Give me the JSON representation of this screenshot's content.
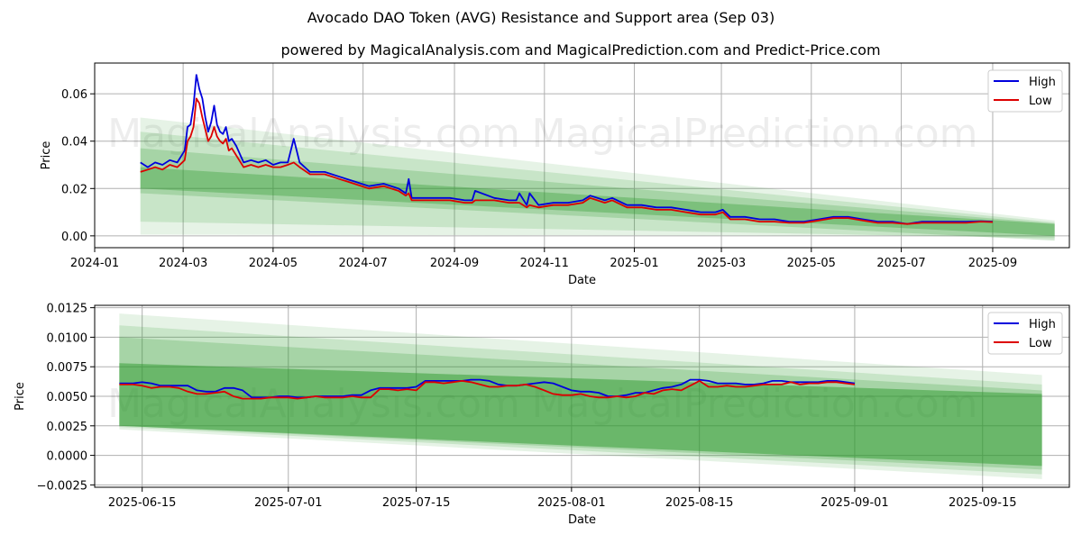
{
  "title": "Avocado DAO Token (AVG) Resistance and Support area (Sep 03)",
  "subtitle": "powered by MagicalAnalysis.com and MagicalPrediction.com and Predict-Price.com",
  "watermarks": [
    "MagicalAnalysis.com",
    "MagicalPrediction.com"
  ],
  "legend": {
    "high": "High",
    "low": "Low"
  },
  "colors": {
    "high": "#0000dd",
    "low": "#dd0000",
    "band": "#2e9a2e",
    "band_light": "#6ab96a"
  },
  "chart_data": [
    {
      "type": "line",
      "id": "top",
      "xlabel": "Date",
      "ylabel": "Price",
      "x_ticks": [
        {
          "label": "2024-01",
          "day": -31
        },
        {
          "label": "2024-03",
          "day": 29
        },
        {
          "label": "2024-05",
          "day": 90
        },
        {
          "label": "2024-07",
          "day": 151
        },
        {
          "label": "2024-09",
          "day": 213
        },
        {
          "label": "2024-11",
          "day": 274
        },
        {
          "label": "2025-01",
          "day": 335
        },
        {
          "label": "2025-03",
          "day": 394
        },
        {
          "label": "2025-05",
          "day": 455
        },
        {
          "label": "2025-07",
          "day": 516
        },
        {
          "label": "2025-09",
          "day": 578
        }
      ],
      "y_ticks": [
        0.0,
        0.02,
        0.04,
        0.06
      ],
      "y_tick_labels": [
        "0.00",
        "0.02",
        "0.04",
        "0.06"
      ],
      "xlim": [
        -31,
        630
      ],
      "ylim": [
        -0.005,
        0.073
      ],
      "bands": [
        {
          "x": [
            0,
            620
          ],
          "upper": [
            0.05,
            0.0065
          ],
          "lower": [
            0.0005,
            0.0
          ],
          "opacity": 0.12
        },
        {
          "x": [
            0,
            620
          ],
          "upper": [
            0.044,
            0.0057
          ],
          "lower": [
            0.006,
            -0.001
          ],
          "opacity": 0.16
        },
        {
          "x": [
            0,
            620
          ],
          "upper": [
            0.037,
            0.0052
          ],
          "lower": [
            0.018,
            -0.002
          ],
          "opacity": 0.22
        },
        {
          "x": [
            0,
            620
          ],
          "upper": [
            0.029,
            0.005
          ],
          "lower": [
            0.02,
            0.0
          ],
          "opacity": 0.35
        }
      ],
      "series": [
        {
          "name": "High",
          "x": [
            0,
            5,
            10,
            15,
            20,
            25,
            30,
            32,
            34,
            36,
            38,
            40,
            42,
            44,
            46,
            48,
            50,
            52,
            54,
            56,
            58,
            60,
            62,
            65,
            70,
            75,
            80,
            85,
            90,
            95,
            100,
            104,
            108,
            115,
            125,
            135,
            145,
            155,
            165,
            175,
            180,
            182,
            184,
            195,
            210,
            220,
            225,
            227,
            240,
            250,
            255,
            257,
            262,
            264,
            270,
            280,
            290,
            300,
            305,
            315,
            320,
            330,
            340,
            350,
            360,
            370,
            380,
            390,
            395,
            400,
            410,
            420,
            430,
            440,
            450,
            460,
            470,
            480,
            490,
            500,
            510,
            520,
            530,
            540,
            550,
            560,
            570,
            578
          ],
          "values": [
            0.031,
            0.029,
            0.031,
            0.03,
            0.032,
            0.031,
            0.036,
            0.046,
            0.047,
            0.055,
            0.068,
            0.062,
            0.058,
            0.05,
            0.044,
            0.048,
            0.055,
            0.047,
            0.044,
            0.043,
            0.046,
            0.04,
            0.041,
            0.038,
            0.031,
            0.032,
            0.031,
            0.032,
            0.03,
            0.031,
            0.031,
            0.041,
            0.031,
            0.027,
            0.027,
            0.025,
            0.023,
            0.021,
            0.022,
            0.02,
            0.018,
            0.024,
            0.016,
            0.016,
            0.016,
            0.015,
            0.015,
            0.019,
            0.016,
            0.015,
            0.015,
            0.018,
            0.013,
            0.018,
            0.013,
            0.014,
            0.014,
            0.015,
            0.017,
            0.015,
            0.016,
            0.013,
            0.013,
            0.012,
            0.012,
            0.011,
            0.01,
            0.01,
            0.011,
            0.008,
            0.008,
            0.007,
            0.007,
            0.006,
            0.006,
            0.007,
            0.008,
            0.008,
            0.007,
            0.006,
            0.006,
            0.005,
            0.006,
            0.006,
            0.006,
            0.006,
            0.0062,
            0.006
          ]
        },
        {
          "name": "Low",
          "x": [
            0,
            5,
            10,
            15,
            20,
            25,
            30,
            32,
            34,
            36,
            38,
            40,
            42,
            44,
            46,
            48,
            50,
            52,
            54,
            56,
            58,
            60,
            62,
            65,
            70,
            75,
            80,
            85,
            90,
            95,
            100,
            104,
            108,
            115,
            125,
            135,
            145,
            155,
            165,
            175,
            180,
            182,
            184,
            195,
            210,
            220,
            225,
            227,
            240,
            250,
            255,
            257,
            262,
            264,
            270,
            280,
            290,
            300,
            305,
            315,
            320,
            330,
            340,
            350,
            360,
            370,
            380,
            390,
            395,
            400,
            410,
            420,
            430,
            440,
            450,
            460,
            470,
            480,
            490,
            500,
            510,
            520,
            530,
            540,
            550,
            560,
            570,
            578
          ],
          "values": [
            0.027,
            0.028,
            0.029,
            0.028,
            0.03,
            0.029,
            0.032,
            0.04,
            0.042,
            0.046,
            0.058,
            0.056,
            0.05,
            0.045,
            0.04,
            0.042,
            0.046,
            0.042,
            0.04,
            0.039,
            0.041,
            0.036,
            0.037,
            0.034,
            0.029,
            0.03,
            0.029,
            0.03,
            0.029,
            0.029,
            0.03,
            0.031,
            0.029,
            0.026,
            0.026,
            0.024,
            0.022,
            0.02,
            0.021,
            0.019,
            0.017,
            0.018,
            0.015,
            0.015,
            0.015,
            0.014,
            0.014,
            0.015,
            0.015,
            0.014,
            0.014,
            0.014,
            0.012,
            0.013,
            0.012,
            0.013,
            0.013,
            0.014,
            0.016,
            0.014,
            0.015,
            0.012,
            0.012,
            0.011,
            0.011,
            0.01,
            0.009,
            0.009,
            0.01,
            0.007,
            0.007,
            0.006,
            0.006,
            0.0055,
            0.0055,
            0.0065,
            0.0075,
            0.0075,
            0.0065,
            0.0055,
            0.0055,
            0.005,
            0.0055,
            0.0055,
            0.0055,
            0.0055,
            0.006,
            0.0058
          ]
        }
      ]
    },
    {
      "type": "line",
      "id": "bottom",
      "xlabel": "Date",
      "ylabel": "Price",
      "x_ticks": [
        {
          "label": "2025-06-15",
          "day": 0
        },
        {
          "label": "2025-07-01",
          "day": 16
        },
        {
          "label": "2025-07-15",
          "day": 30
        },
        {
          "label": "2025-08-01",
          "day": 47
        },
        {
          "label": "2025-08-15",
          "day": 61
        },
        {
          "label": "2025-09-01",
          "day": 78
        },
        {
          "label": "2025-09-15",
          "day": 92
        }
      ],
      "y_ticks": [
        -0.0025,
        0.0,
        0.0025,
        0.005,
        0.0075,
        0.01,
        0.0125
      ],
      "y_tick_labels": [
        "−0.0025",
        "0.0000",
        "0.0025",
        "0.0050",
        "0.0075",
        "0.0100",
        "0.0125"
      ],
      "xlim": [
        -5.2,
        101.5
      ],
      "ylim": [
        -0.0027,
        0.0127
      ],
      "bands": [
        {
          "x": [
            -2.5,
            98.5
          ],
          "upper": [
            0.012,
            0.0068
          ],
          "lower": [
            0.0022,
            -0.002
          ],
          "opacity": 0.12
        },
        {
          "x": [
            -2.5,
            98.5
          ],
          "upper": [
            0.011,
            0.006
          ],
          "lower": [
            0.0024,
            -0.0016
          ],
          "opacity": 0.16
        },
        {
          "x": [
            -2.5,
            98.5
          ],
          "upper": [
            0.01,
            0.0055
          ],
          "lower": [
            0.0025,
            -0.0012
          ],
          "opacity": 0.22
        },
        {
          "x": [
            -2.5,
            98.5
          ],
          "upper": [
            0.0078,
            0.0052
          ],
          "lower": [
            0.0025,
            -0.0009
          ],
          "opacity": 0.5
        }
      ],
      "series": [
        {
          "name": "High",
          "x": [
            -2.5,
            -1,
            0,
            1,
            2,
            3,
            4,
            5,
            6,
            7,
            8,
            9,
            10,
            11,
            12,
            13,
            14,
            15,
            16,
            17,
            18,
            19,
            20,
            21,
            22,
            23,
            24,
            25,
            26,
            27,
            28,
            29,
            30,
            31,
            32,
            33,
            34,
            35,
            36,
            37,
            38,
            39,
            40,
            41,
            42,
            43,
            44,
            45,
            46,
            47,
            48,
            49,
            50,
            51,
            52,
            53,
            54,
            55,
            56,
            57,
            58,
            59,
            60,
            61,
            62,
            63,
            64,
            65,
            66,
            67,
            68,
            69,
            70,
            71,
            72,
            73,
            74,
            75,
            76,
            77,
            78
          ],
          "values": [
            0.0061,
            0.0061,
            0.0062,
            0.0061,
            0.0059,
            0.0059,
            0.0059,
            0.0059,
            0.0055,
            0.0054,
            0.0054,
            0.0057,
            0.0057,
            0.0055,
            0.0049,
            0.0049,
            0.0049,
            0.005,
            0.005,
            0.0049,
            0.0049,
            0.005,
            0.005,
            0.005,
            0.005,
            0.0051,
            0.0051,
            0.0055,
            0.0057,
            0.0057,
            0.0057,
            0.0057,
            0.0058,
            0.0063,
            0.0063,
            0.0063,
            0.0063,
            0.0063,
            0.0064,
            0.0064,
            0.0063,
            0.006,
            0.0059,
            0.0059,
            0.006,
            0.0061,
            0.0062,
            0.0061,
            0.0058,
            0.0055,
            0.0054,
            0.0054,
            0.0053,
            0.005,
            0.005,
            0.0051,
            0.0053,
            0.0053,
            0.0055,
            0.0057,
            0.0058,
            0.006,
            0.0064,
            0.0064,
            0.0063,
            0.0061,
            0.0061,
            0.0061,
            0.006,
            0.006,
            0.0061,
            0.0063,
            0.0063,
            0.0062,
            0.0062,
            0.0062,
            0.0062,
            0.0063,
            0.0063,
            0.0062,
            0.0061
          ]
        },
        {
          "name": "Low",
          "x": [
            -2.5,
            -1,
            0,
            1,
            2,
            3,
            4,
            5,
            6,
            7,
            8,
            9,
            10,
            11,
            12,
            13,
            14,
            15,
            16,
            17,
            18,
            19,
            20,
            21,
            22,
            23,
            24,
            25,
            26,
            27,
            28,
            29,
            30,
            31,
            32,
            33,
            34,
            35,
            36,
            37,
            38,
            39,
            40,
            41,
            42,
            43,
            44,
            45,
            46,
            47,
            48,
            49,
            50,
            51,
            52,
            53,
            54,
            55,
            56,
            57,
            58,
            59,
            60,
            61,
            62,
            63,
            64,
            65,
            66,
            67,
            68,
            69,
            70,
            71,
            72,
            73,
            74,
            75,
            76,
            77,
            78
          ],
          "values": [
            0.006,
            0.006,
            0.0059,
            0.0057,
            0.0058,
            0.0058,
            0.0057,
            0.0054,
            0.0052,
            0.0052,
            0.0053,
            0.0054,
            0.005,
            0.0048,
            0.0048,
            0.0048,
            0.0049,
            0.0049,
            0.0049,
            0.0048,
            0.0049,
            0.005,
            0.0049,
            0.0049,
            0.0049,
            0.005,
            0.0049,
            0.0049,
            0.0056,
            0.0056,
            0.0055,
            0.0056,
            0.0055,
            0.0062,
            0.0062,
            0.0061,
            0.0062,
            0.0063,
            0.0062,
            0.006,
            0.0058,
            0.0058,
            0.0059,
            0.0059,
            0.006,
            0.0058,
            0.0055,
            0.0052,
            0.0051,
            0.0051,
            0.0052,
            0.005,
            0.0049,
            0.0049,
            0.005,
            0.0049,
            0.005,
            0.0053,
            0.0052,
            0.0055,
            0.0056,
            0.0055,
            0.0059,
            0.0063,
            0.0058,
            0.0058,
            0.0059,
            0.0058,
            0.0058,
            0.0059,
            0.006,
            0.006,
            0.006,
            0.0062,
            0.006,
            0.0061,
            0.0061,
            0.0062,
            0.0062,
            0.0061,
            0.006
          ]
        }
      ]
    }
  ]
}
